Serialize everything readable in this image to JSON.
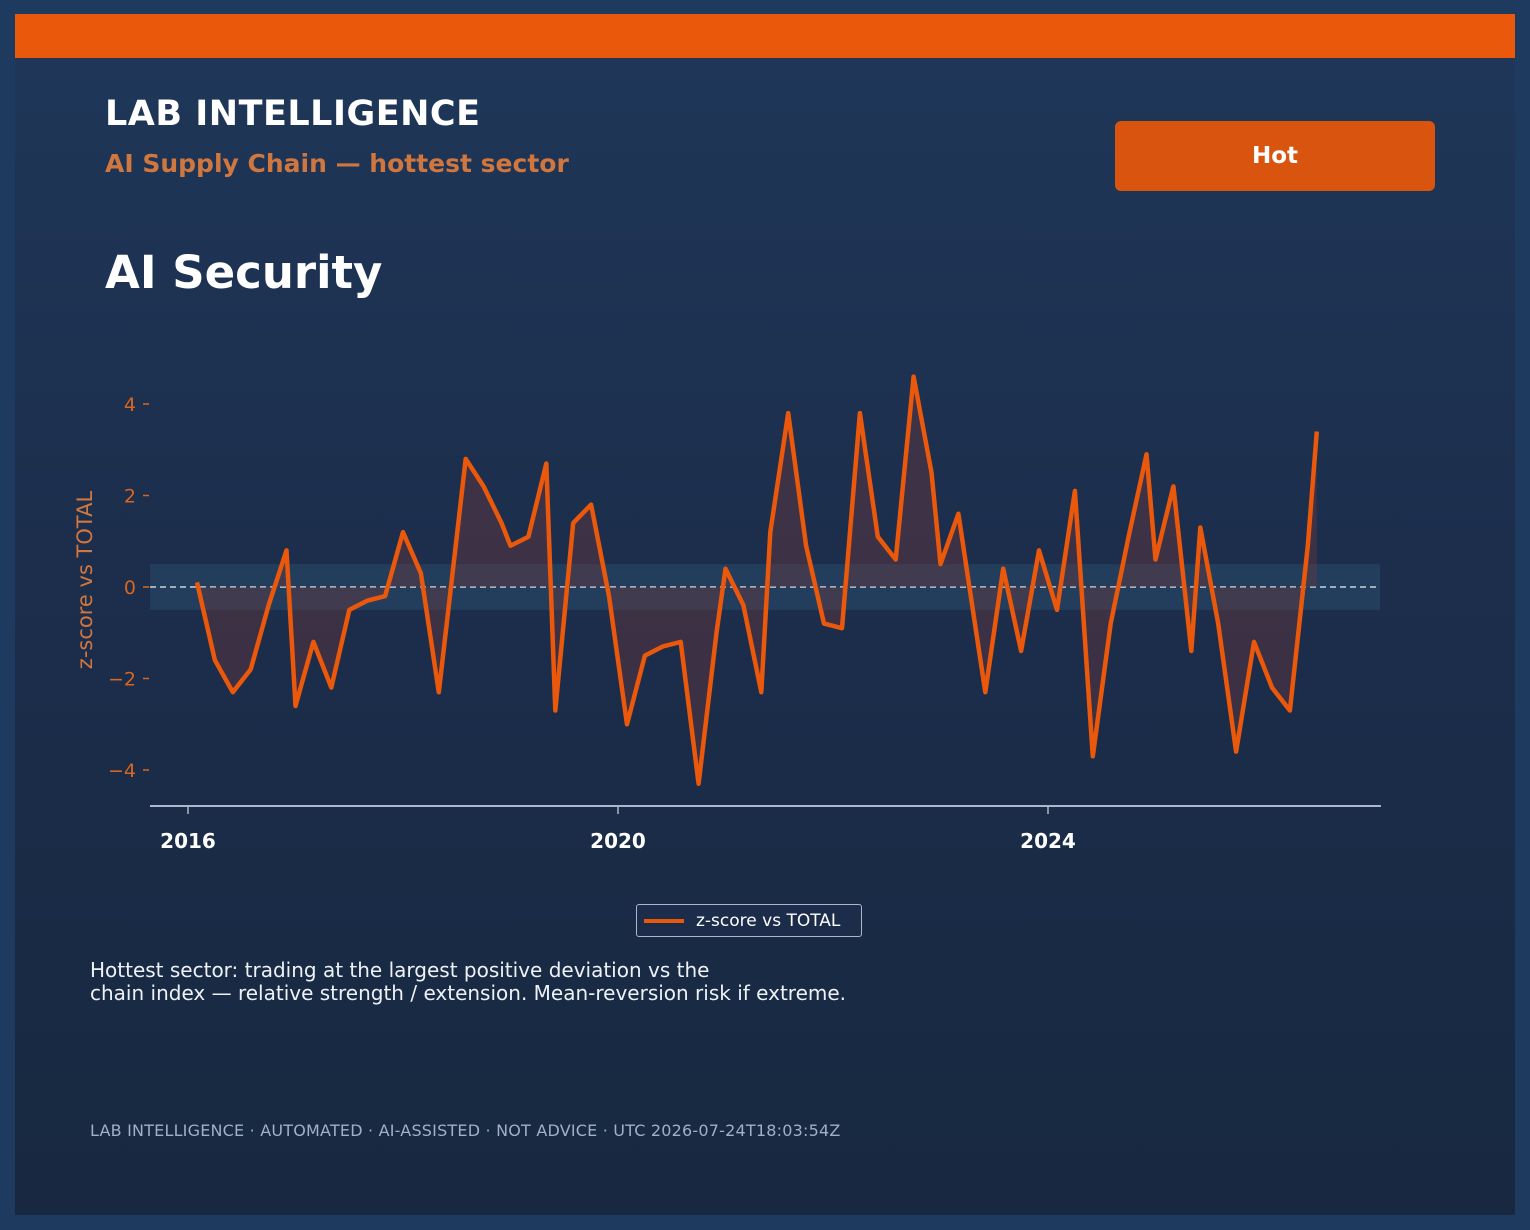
{
  "header": {
    "brand": "LAB INTELLIGENCE",
    "subtitle": "AI Supply Chain — hottest sector",
    "badge": "Hot"
  },
  "sector_title": "AI Security",
  "description": "Hottest sector: trading at the largest positive deviation vs the\nchain index — relative strength / extension. Mean-reversion risk if extreme.",
  "footer": "LAB INTELLIGENCE · AUTOMATED · AI-ASSISTED · NOT ADVICE · UTC 2026-07-24T18:03:54Z",
  "colors": {
    "accent": "#ea580c",
    "badge": "#d9540f",
    "subtitle": "#d0773f"
  },
  "chart_data": {
    "type": "line",
    "title": "",
    "xlabel": "",
    "ylabel": "z-score vs TOTAL",
    "x_ticks": [
      "2016",
      "2020",
      "2024"
    ],
    "y_ticks": [
      "4",
      "2",
      "0",
      "−2",
      "−4"
    ],
    "xlim": [
      "2015-08",
      "2027-02"
    ],
    "ylim": [
      -4.8,
      5.2
    ],
    "band": [
      -0.5,
      0.5
    ],
    "reference_line": 0,
    "legend": "top-center-below",
    "series": [
      {
        "name": "z-score vs TOTAL",
        "x": [
          "2016-02",
          "2016-04",
          "2016-06",
          "2016-08",
          "2016-10",
          "2016-12",
          "2017-01",
          "2017-03",
          "2017-05",
          "2017-07",
          "2017-09",
          "2017-11",
          "2018-01",
          "2018-03",
          "2018-05",
          "2018-06",
          "2018-08",
          "2018-10",
          "2018-12",
          "2019-01",
          "2019-03",
          "2019-05",
          "2019-06",
          "2019-08",
          "2019-10",
          "2019-12",
          "2020-02",
          "2020-04",
          "2020-06",
          "2020-08",
          "2020-10",
          "2020-12",
          "2021-01",
          "2021-03",
          "2021-05",
          "2021-06",
          "2021-08",
          "2021-10",
          "2021-12",
          "2022-02",
          "2022-04",
          "2022-06",
          "2022-08",
          "2022-10",
          "2022-12",
          "2023-01",
          "2023-03",
          "2023-05",
          "2023-06",
          "2023-08",
          "2023-10",
          "2023-12",
          "2024-02",
          "2024-04",
          "2024-06",
          "2024-08",
          "2024-10",
          "2024-12",
          "2025-01",
          "2025-03",
          "2025-05",
          "2025-06",
          "2025-08",
          "2025-10",
          "2025-12",
          "2026-02",
          "2026-04",
          "2026-06",
          "2026-07"
        ],
        "values": [
          0.1,
          -1.6,
          -2.3,
          -1.8,
          -0.4,
          0.8,
          -2.6,
          -1.2,
          -2.2,
          -0.5,
          -0.3,
          -0.2,
          1.2,
          0.3,
          -2.3,
          -0.6,
          2.8,
          2.2,
          1.4,
          0.9,
          1.1,
          2.7,
          -2.7,
          1.4,
          1.8,
          -0.2,
          -3.0,
          -1.5,
          -1.3,
          -1.2,
          -4.3,
          -1.0,
          0.4,
          -0.4,
          -2.3,
          1.2,
          3.8,
          0.9,
          -0.8,
          -0.9,
          3.8,
          1.1,
          0.6,
          4.6,
          2.5,
          0.5,
          1.6,
          -1.0,
          -2.3,
          0.4,
          -1.4,
          0.8,
          -0.5,
          2.1,
          -3.7,
          -0.8,
          1.1,
          2.9,
          0.6,
          2.2,
          -1.4,
          1.3,
          -0.8,
          -3.6,
          -1.2,
          -2.2,
          -2.7,
          0.9,
          3.4
        ]
      }
    ]
  }
}
